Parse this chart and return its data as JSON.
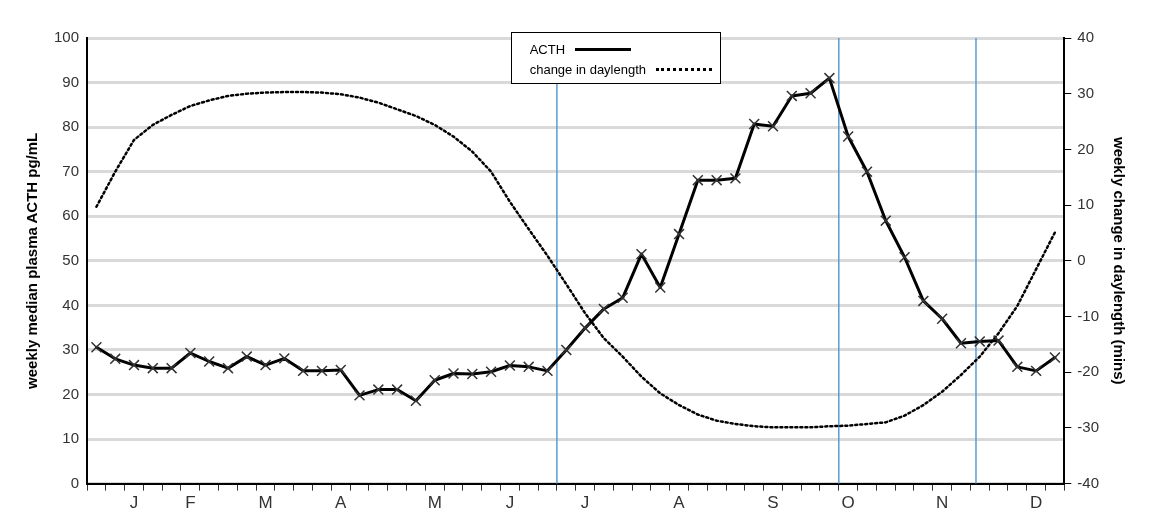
{
  "chart_data": {
    "type": "line",
    "ylabel": "weekly median plasma ACTH pg/mL",
    "y2label": "weekly change in daylength (mins)",
    "categories": [
      null,
      null,
      "J",
      null,
      null,
      "F",
      null,
      null,
      null,
      "M",
      null,
      null,
      null,
      "A",
      null,
      null,
      null,
      null,
      "M",
      null,
      null,
      null,
      "J",
      null,
      null,
      null,
      "J",
      null,
      null,
      null,
      null,
      "A",
      null,
      null,
      null,
      null,
      "S",
      null,
      null,
      null,
      "O",
      null,
      null,
      null,
      null,
      "N",
      null,
      null,
      null,
      null,
      "D",
      null
    ],
    "series": [
      {
        "name": "ACTH",
        "color": "#000000",
        "marker": "cross",
        "line_style": "solid",
        "values": [
          30.6,
          28.0,
          26.6,
          25.9,
          25.9,
          29.3,
          27.4,
          25.9,
          28.5,
          26.6,
          28.1,
          25.3,
          25.3,
          25.5,
          19.8,
          21.1,
          21.1,
          18.6,
          23.2,
          24.7,
          24.6,
          25.1,
          26.5,
          26.2,
          25.3,
          30.0,
          34.9,
          39.2,
          41.7,
          51.5,
          44.0,
          56.0,
          68.1,
          68.1,
          68.5,
          80.7,
          80.2,
          87.0,
          87.6,
          91.0,
          77.9,
          70.0,
          59.0,
          50.8,
          41.0,
          37.0,
          31.5,
          31.9,
          32.1,
          26.2,
          25.3,
          28.3
        ]
      },
      {
        "name": "change in daylength",
        "color": "#000000",
        "marker": "none",
        "line_style": "dotted",
        "axis": "y2",
        "values": [
          9.7,
          16.0,
          21.7,
          24.4,
          26.2,
          27.8,
          28.8,
          29.6,
          30.0,
          30.2,
          30.3,
          30.3,
          30.2,
          29.9,
          29.3,
          28.4,
          27.2,
          26.0,
          24.4,
          22.3,
          19.6,
          16.0,
          10.6,
          5.7,
          0.9,
          -4.2,
          -9.4,
          -13.9,
          -17.2,
          -20.8,
          -23.8,
          -25.9,
          -27.6,
          -28.7,
          -29.3,
          -29.7,
          -29.9,
          -29.9,
          -29.9,
          -29.7,
          -29.6,
          -29.3,
          -29.0,
          -27.8,
          -25.9,
          -23.5,
          -20.5,
          -17.2,
          -13.0,
          -8.1,
          -1.5,
          5.1
        ]
      }
    ],
    "ylim": [
      0,
      100
    ],
    "yticks": [
      0,
      10,
      20,
      30,
      40,
      50,
      60,
      70,
      80,
      90,
      100
    ],
    "y2lim": [
      -40,
      40
    ],
    "y2ticks": [
      -40,
      -30,
      -20,
      -10,
      0,
      10,
      20,
      30,
      40
    ],
    "grid": "y",
    "legend": "top"
  }
}
